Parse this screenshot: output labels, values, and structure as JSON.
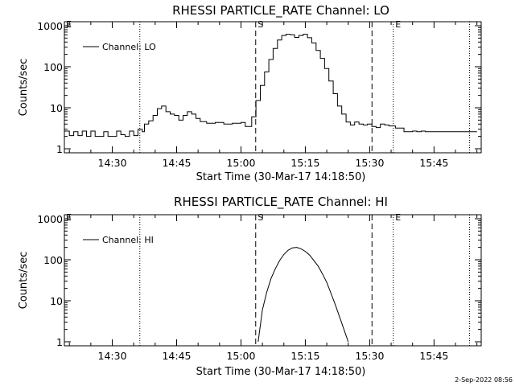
{
  "footer": "2-Sep-2022 08:56",
  "chart_data": [
    {
      "type": "line",
      "title": "RHESSI PARTICLE_RATE Channel: LO",
      "xlabel": "Start Time (30-Mar-17 14:18:50)",
      "ylabel": "Counts/sec",
      "legend": "Channel: LO",
      "legend_position": "top-left",
      "yscale": "log",
      "xlim": [
        "14:18:50",
        "15:56:00"
      ],
      "ylim": [
        1,
        1000
      ],
      "x_ticks": [
        "14:30",
        "14:45",
        "15:00",
        "15:15",
        "15:30",
        "15:45"
      ],
      "y_ticks": [
        "1",
        "10",
        "100",
        "1000"
      ],
      "markers": {
        "start_label": "S",
        "end_label": "E",
        "s_time": "15:03:00",
        "e_time": "15:36:00"
      },
      "series": [
        {
          "x": [
            "14:18:50",
            "14:20:00",
            "14:21:00",
            "14:22:00",
            "14:23:00",
            "14:24:00",
            "14:25:00",
            "14:26:00",
            "14:27:00",
            "14:28:00",
            "14:29:00",
            "14:30:00",
            "14:31:00",
            "14:32:00",
            "14:33:00",
            "14:34:00",
            "14:35:00",
            "14:36:00",
            "14:37:00",
            "14:37:30",
            "14:38:30",
            "14:39:30",
            "14:40:30",
            "14:41:30",
            "14:42:30",
            "14:43:30",
            "14:44:30",
            "14:45:30",
            "14:46:30",
            "14:47:30",
            "14:48:30",
            "14:49:30",
            "14:50:30",
            "14:52:00",
            "14:54:00",
            "14:56:00",
            "14:58:00",
            "15:00:00",
            "15:01:00",
            "15:02:30",
            "15:03:30",
            "15:04:30",
            "15:05:30",
            "15:06:30",
            "15:07:30",
            "15:08:30",
            "15:09:30",
            "15:10:30",
            "15:11:30",
            "15:12:30",
            "15:13:30",
            "15:14:30",
            "15:15:30",
            "15:16:30",
            "15:17:30",
            "15:18:30",
            "15:19:30",
            "15:20:30",
            "15:21:30",
            "15:22:30",
            "15:23:30",
            "15:24:30",
            "15:25:30",
            "15:26:30",
            "15:27:30",
            "15:28:30",
            "15:29:30",
            "15:30:30",
            "15:31:30",
            "15:32:30",
            "15:33:30",
            "15:34:30",
            "15:36:00",
            "15:38:00",
            "15:40:00",
            "15:41:00",
            "15:42:00",
            "15:43:00",
            "15:45:00",
            "15:47:00",
            "15:49:00",
            "15:51:00",
            "15:53:00",
            "15:55:00"
          ],
          "y": [
            2.7,
            2.1,
            2.6,
            2.1,
            2.7,
            2.0,
            2.7,
            2.0,
            2.0,
            2.6,
            2.0,
            2.0,
            2.7,
            2.2,
            2.0,
            2.7,
            2.1,
            3.0,
            2.6,
            4.0,
            4.8,
            6.5,
            9.5,
            11,
            8,
            7,
            6.5,
            5,
            6.5,
            8,
            7,
            5.5,
            4.6,
            4.2,
            4.4,
            4.0,
            4.2,
            4.4,
            3.5,
            6,
            15,
            35,
            75,
            150,
            280,
            450,
            580,
            620,
            600,
            520,
            580,
            620,
            510,
            380,
            250,
            160,
            90,
            45,
            22,
            11,
            7,
            4.5,
            3.8,
            4.5,
            4.0,
            3.8,
            4.0,
            3.5,
            3.3,
            4.0,
            3.8,
            3.6,
            3.2,
            2.6,
            2.7,
            2.6,
            2.7,
            2.6,
            2.6,
            2.6,
            2.6,
            2.6,
            2.6,
            2.6
          ]
        }
      ]
    },
    {
      "type": "line",
      "title": "RHESSI PARTICLE_RATE Channel: HI",
      "xlabel": "Start Time (30-Mar-17 14:18:50)",
      "ylabel": "Counts/sec",
      "legend": "Channel: HI",
      "legend_position": "top-left",
      "yscale": "log",
      "xlim": [
        "14:18:50",
        "15:56:00"
      ],
      "ylim": [
        1,
        1000
      ],
      "x_ticks": [
        "14:30",
        "14:45",
        "15:00",
        "15:15",
        "15:30",
        "15:45"
      ],
      "y_ticks": [
        "1",
        "10",
        "100",
        "1000"
      ],
      "markers": {
        "start_label": "S",
        "end_label": "E",
        "s_time": "15:03:00",
        "e_time": "15:36:00"
      },
      "series": [
        {
          "x": [
            "15:04:00",
            "15:05:00",
            "15:06:00",
            "15:07:00",
            "15:08:00",
            "15:09:00",
            "15:10:00",
            "15:11:00",
            "15:12:00",
            "15:13:00",
            "15:14:00",
            "15:15:00",
            "15:16:00",
            "15:17:00",
            "15:18:00",
            "15:19:00",
            "15:20:00",
            "15:21:00",
            "15:22:00",
            "15:23:00",
            "15:24:00",
            "15:25:00"
          ],
          "y": [
            1.0,
            6,
            16,
            35,
            60,
            95,
            135,
            170,
            195,
            200,
            185,
            160,
            130,
            95,
            70,
            45,
            28,
            15,
            8,
            4,
            2,
            1.0
          ]
        }
      ]
    }
  ]
}
